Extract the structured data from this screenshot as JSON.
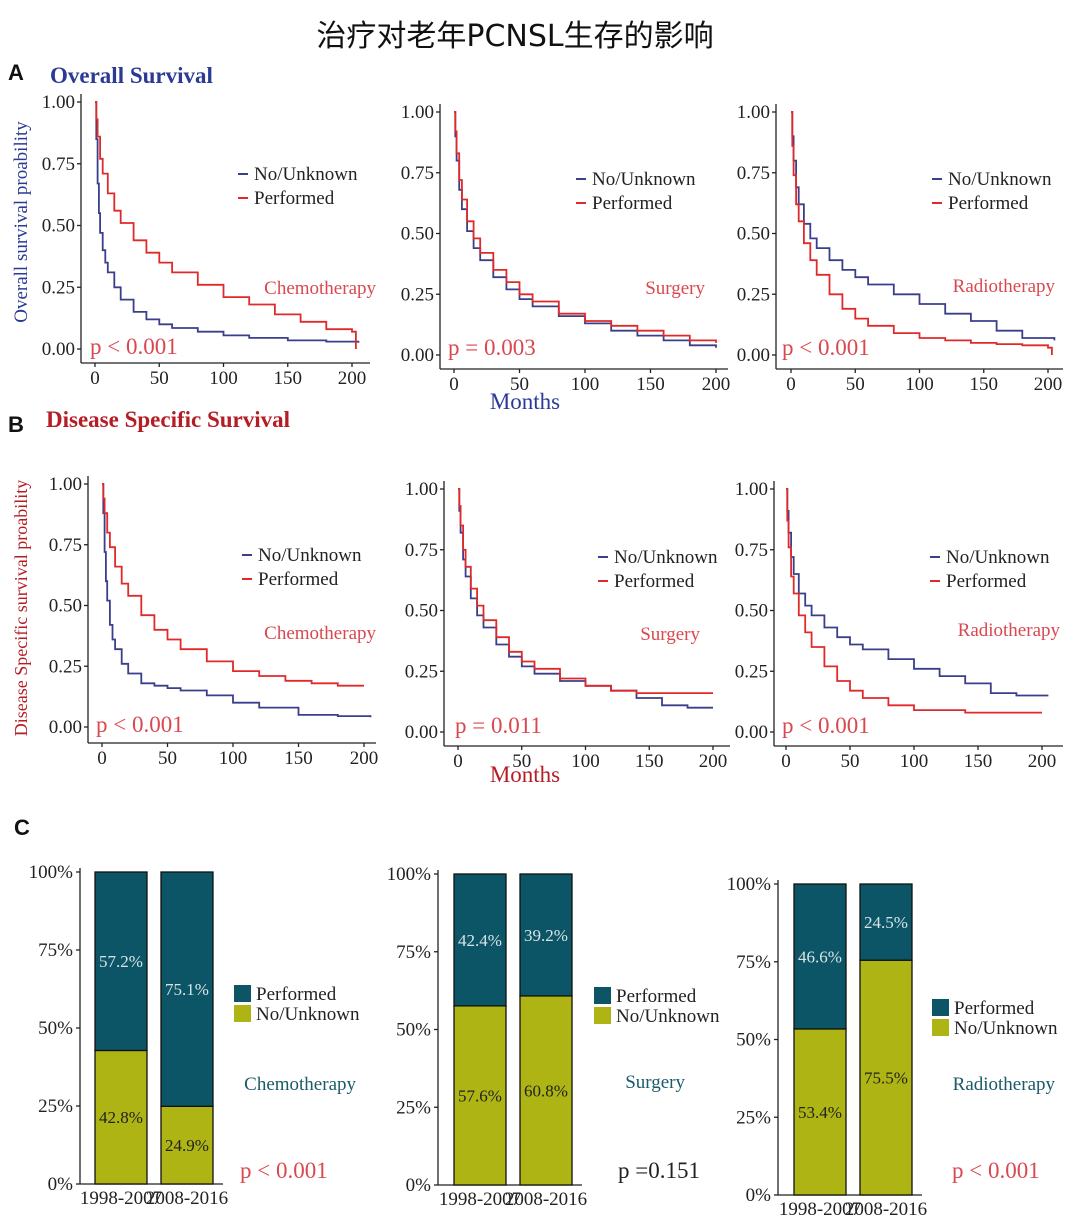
{
  "figure_title": "治疗对老年PCNSL生存的影响",
  "colors": {
    "no_unknown": "#3a3f8c",
    "performed": "#e02a2a",
    "annotation_red": "#d9484f",
    "os_title": "#2b3a94",
    "dss_title": "#b51d25",
    "bar_performed": "#0c5566",
    "bar_no_unknown": "#adb413",
    "bar_teal_label": "#1b5a68"
  },
  "panel_a": {
    "letter": "A",
    "title": "Overall Survival",
    "ylabel": "Overall survival proability",
    "xlabel": "Months"
  },
  "panel_b": {
    "letter": "B",
    "title": "Disease Specific Survival",
    "ylabel": "Disease Specific survival proability",
    "xlabel": "Months"
  },
  "panel_c": {
    "letter": "C"
  },
  "chart_data": [
    {
      "id": "os_chemo",
      "type": "line",
      "treatment": "Chemotherapy",
      "pvalue": "p < 0.001",
      "xlabel": "",
      "ylabel": "Overall survival proability",
      "xlim": [
        0,
        205
      ],
      "ylim": [
        0,
        1
      ],
      "x_ticks": [
        0,
        50,
        100,
        150,
        200
      ],
      "y_ticks": [
        "0.00",
        "0.25",
        "0.50",
        "0.75",
        "1.00"
      ],
      "legend": [
        "No/Unknown",
        "Performed"
      ],
      "series": [
        {
          "name": "No/Unknown",
          "x": [
            0,
            1,
            2,
            3,
            4,
            6,
            8,
            10,
            15,
            20,
            30,
            40,
            50,
            60,
            80,
            100,
            120,
            150,
            180,
            205
          ],
          "y": [
            1.0,
            0.85,
            0.67,
            0.55,
            0.47,
            0.4,
            0.35,
            0.31,
            0.25,
            0.2,
            0.15,
            0.12,
            0.1,
            0.085,
            0.07,
            0.055,
            0.045,
            0.035,
            0.03,
            0.025
          ]
        },
        {
          "name": "Performed",
          "x": [
            0,
            1,
            2,
            4,
            6,
            10,
            15,
            20,
            30,
            40,
            50,
            60,
            80,
            100,
            120,
            140,
            160,
            180,
            200,
            203
          ],
          "y": [
            1.0,
            0.93,
            0.86,
            0.77,
            0.71,
            0.63,
            0.56,
            0.51,
            0.44,
            0.39,
            0.35,
            0.31,
            0.26,
            0.21,
            0.18,
            0.14,
            0.11,
            0.08,
            0.07,
            0.0
          ]
        }
      ]
    },
    {
      "id": "os_surgery",
      "type": "line",
      "treatment": "Surgery",
      "pvalue": "p = 0.003",
      "xlabel": "Months",
      "ylabel": "",
      "xlim": [
        0,
        205
      ],
      "ylim": [
        0,
        1
      ],
      "x_ticks": [
        0,
        50,
        100,
        150,
        200
      ],
      "y_ticks": [
        "0.00",
        "0.25",
        "0.50",
        "0.75",
        "1.00"
      ],
      "legend": [
        "No/Unknown",
        "Performed"
      ],
      "series": [
        {
          "name": "No/Unknown",
          "x": [
            0,
            1,
            2,
            4,
            6,
            10,
            15,
            20,
            30,
            40,
            50,
            60,
            80,
            100,
            120,
            140,
            160,
            180,
            200
          ],
          "y": [
            1.0,
            0.9,
            0.8,
            0.68,
            0.6,
            0.51,
            0.44,
            0.39,
            0.32,
            0.27,
            0.23,
            0.2,
            0.16,
            0.13,
            0.1,
            0.08,
            0.06,
            0.04,
            0.03
          ]
        },
        {
          "name": "Performed",
          "x": [
            0,
            1,
            2,
            4,
            6,
            10,
            15,
            20,
            30,
            40,
            50,
            60,
            80,
            100,
            120,
            140,
            160,
            180,
            200
          ],
          "y": [
            1.0,
            0.92,
            0.83,
            0.72,
            0.64,
            0.55,
            0.48,
            0.42,
            0.35,
            0.3,
            0.25,
            0.22,
            0.17,
            0.14,
            0.12,
            0.1,
            0.08,
            0.06,
            0.05
          ]
        }
      ]
    },
    {
      "id": "os_radio",
      "type": "line",
      "treatment": "Radiotherapy",
      "pvalue": "p < 0.001",
      "xlabel": "",
      "ylabel": "",
      "xlim": [
        0,
        205
      ],
      "ylim": [
        0,
        1
      ],
      "x_ticks": [
        0,
        50,
        100,
        150,
        200
      ],
      "y_ticks": [
        "0.00",
        "0.25",
        "0.50",
        "0.75",
        "1.00"
      ],
      "legend": [
        "No/Unknown",
        "Performed"
      ],
      "series": [
        {
          "name": "No/Unknown",
          "x": [
            0,
            1,
            2,
            4,
            6,
            10,
            15,
            20,
            30,
            40,
            50,
            60,
            80,
            100,
            120,
            140,
            160,
            180,
            205
          ],
          "y": [
            1.0,
            0.9,
            0.8,
            0.69,
            0.62,
            0.54,
            0.48,
            0.44,
            0.39,
            0.35,
            0.32,
            0.29,
            0.25,
            0.21,
            0.17,
            0.14,
            0.1,
            0.07,
            0.06
          ]
        },
        {
          "name": "Performed",
          "x": [
            0,
            1,
            2,
            4,
            6,
            10,
            15,
            20,
            30,
            40,
            50,
            60,
            80,
            100,
            120,
            140,
            160,
            180,
            200,
            203
          ],
          "y": [
            1.0,
            0.86,
            0.74,
            0.62,
            0.55,
            0.46,
            0.39,
            0.33,
            0.25,
            0.19,
            0.15,
            0.12,
            0.09,
            0.07,
            0.06,
            0.05,
            0.045,
            0.04,
            0.03,
            0.0
          ]
        }
      ]
    },
    {
      "id": "dss_chemo",
      "type": "line",
      "treatment": "Chemotherapy",
      "pvalue": "p < 0.001",
      "xlabel": "",
      "ylabel": "Disease Specific survival proability",
      "xlim": [
        0,
        205
      ],
      "ylim": [
        0,
        1
      ],
      "x_ticks": [
        0,
        50,
        100,
        150,
        200
      ],
      "y_ticks": [
        "0.00",
        "0.25",
        "0.50",
        "0.75",
        "1.00"
      ],
      "legend": [
        "No/Unknown",
        "Performed"
      ],
      "series": [
        {
          "name": "No/Unknown",
          "x": [
            0,
            1,
            2,
            3,
            4,
            6,
            8,
            10,
            15,
            20,
            30,
            40,
            50,
            60,
            80,
            100,
            120,
            150,
            180,
            205
          ],
          "y": [
            1.0,
            0.88,
            0.72,
            0.6,
            0.52,
            0.42,
            0.36,
            0.32,
            0.26,
            0.22,
            0.18,
            0.17,
            0.16,
            0.15,
            0.13,
            0.1,
            0.08,
            0.05,
            0.045,
            0.04
          ]
        },
        {
          "name": "Performed",
          "x": [
            0,
            1,
            2,
            4,
            6,
            10,
            15,
            20,
            30,
            40,
            50,
            60,
            80,
            100,
            120,
            140,
            160,
            180,
            200
          ],
          "y": [
            1.0,
            0.94,
            0.88,
            0.8,
            0.74,
            0.66,
            0.59,
            0.54,
            0.46,
            0.4,
            0.36,
            0.32,
            0.27,
            0.23,
            0.21,
            0.19,
            0.18,
            0.17,
            0.17
          ]
        }
      ]
    },
    {
      "id": "dss_surgery",
      "type": "line",
      "treatment": "Surgery",
      "pvalue": "p = 0.011",
      "xlabel": "Months",
      "ylabel": "",
      "xlim": [
        0,
        205
      ],
      "ylim": [
        0,
        1
      ],
      "x_ticks": [
        0,
        50,
        100,
        150,
        200
      ],
      "y_ticks": [
        "0.00",
        "0.25",
        "0.50",
        "0.75",
        "1.00"
      ],
      "legend": [
        "No/Unknown",
        "Performed"
      ],
      "series": [
        {
          "name": "No/Unknown",
          "x": [
            0,
            1,
            2,
            4,
            6,
            10,
            15,
            20,
            30,
            40,
            50,
            60,
            80,
            100,
            120,
            140,
            160,
            180,
            200
          ],
          "y": [
            1.0,
            0.91,
            0.82,
            0.71,
            0.64,
            0.55,
            0.48,
            0.43,
            0.36,
            0.31,
            0.27,
            0.24,
            0.21,
            0.19,
            0.17,
            0.14,
            0.11,
            0.1,
            0.1
          ]
        },
        {
          "name": "Performed",
          "x": [
            0,
            1,
            2,
            4,
            6,
            10,
            15,
            20,
            30,
            40,
            50,
            60,
            80,
            100,
            120,
            140,
            160,
            180,
            200
          ],
          "y": [
            1.0,
            0.93,
            0.85,
            0.75,
            0.68,
            0.59,
            0.52,
            0.46,
            0.39,
            0.33,
            0.29,
            0.26,
            0.22,
            0.19,
            0.17,
            0.16,
            0.16,
            0.16,
            0.16
          ]
        }
      ]
    },
    {
      "id": "dss_radio",
      "type": "line",
      "treatment": "Radiotherapy",
      "pvalue": "p < 0.001",
      "xlabel": "",
      "ylabel": "",
      "xlim": [
        0,
        205
      ],
      "ylim": [
        0,
        1
      ],
      "x_ticks": [
        0,
        50,
        100,
        150,
        200
      ],
      "y_ticks": [
        "0.00",
        "0.25",
        "0.50",
        "0.75",
        "1.00"
      ],
      "legend": [
        "No/Unknown",
        "Performed"
      ],
      "series": [
        {
          "name": "No/Unknown",
          "x": [
            0,
            1,
            2,
            4,
            6,
            10,
            15,
            20,
            30,
            40,
            50,
            60,
            80,
            100,
            120,
            140,
            160,
            180,
            205
          ],
          "y": [
            1.0,
            0.91,
            0.82,
            0.72,
            0.65,
            0.57,
            0.52,
            0.48,
            0.43,
            0.39,
            0.36,
            0.34,
            0.3,
            0.26,
            0.23,
            0.2,
            0.16,
            0.15,
            0.15
          ]
        },
        {
          "name": "Performed",
          "x": [
            0,
            1,
            2,
            4,
            6,
            10,
            15,
            20,
            30,
            40,
            50,
            60,
            80,
            100,
            120,
            140,
            160,
            180,
            200
          ],
          "y": [
            1.0,
            0.87,
            0.76,
            0.64,
            0.57,
            0.48,
            0.41,
            0.35,
            0.27,
            0.21,
            0.17,
            0.14,
            0.11,
            0.09,
            0.09,
            0.08,
            0.08,
            0.08,
            0.08
          ]
        }
      ]
    },
    {
      "id": "bar_chemo",
      "type": "bar",
      "stacked": true,
      "treatment": "Chemotherapy",
      "pvalue": "p < 0.001",
      "categories": [
        "1998-2007",
        "2008-2016"
      ],
      "y_ticks": [
        "0%",
        "25%",
        "50%",
        "75%",
        "100%"
      ],
      "legend": [
        "Performed",
        "No/Unknown"
      ],
      "series": [
        {
          "name": "No/Unknown",
          "values": [
            42.8,
            24.9
          ],
          "labels": [
            "42.8%",
            "24.9%"
          ]
        },
        {
          "name": "Performed",
          "values": [
            57.2,
            75.1
          ],
          "labels": [
            "57.2%",
            "75.1%"
          ]
        }
      ]
    },
    {
      "id": "bar_surgery",
      "type": "bar",
      "stacked": true,
      "treatment": "Surgery",
      "pvalue": "p =0.151",
      "categories": [
        "1998-2007",
        "2008-2016"
      ],
      "y_ticks": [
        "0%",
        "25%",
        "50%",
        "75%",
        "100%"
      ],
      "legend": [
        "Performed",
        "No/Unknown"
      ],
      "series": [
        {
          "name": "No/Unknown",
          "values": [
            57.6,
            60.8
          ],
          "labels": [
            "57.6%",
            "60.8%"
          ]
        },
        {
          "name": "Performed",
          "values": [
            42.4,
            39.2
          ],
          "labels": [
            "42.4%",
            "39.2%"
          ]
        }
      ]
    },
    {
      "id": "bar_radio",
      "type": "bar",
      "stacked": true,
      "treatment": "Radiotherapy",
      "pvalue": "p < 0.001",
      "categories": [
        "1998-2007",
        "2008-2016"
      ],
      "y_ticks": [
        "0%",
        "25%",
        "50%",
        "75%",
        "100%"
      ],
      "legend": [
        "Performed",
        "No/Unknown"
      ],
      "series": [
        {
          "name": "No/Unknown",
          "values": [
            53.4,
            75.5
          ],
          "labels": [
            "53.4%",
            "75.5%"
          ]
        },
        {
          "name": "Performed",
          "values": [
            46.6,
            24.5
          ],
          "labels": [
            "46.6%",
            "24.5%"
          ]
        }
      ]
    }
  ]
}
